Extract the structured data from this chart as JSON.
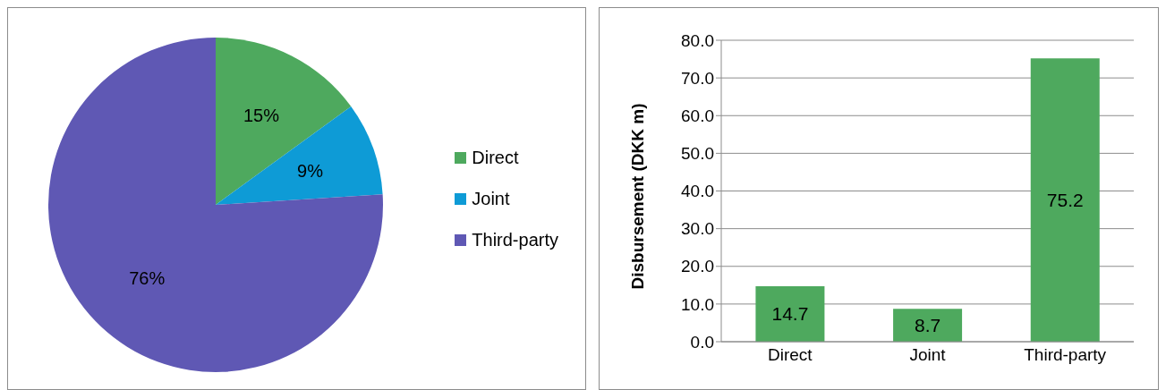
{
  "chart_data": [
    {
      "type": "pie",
      "categories": [
        "Direct",
        "Joint",
        "Third-party"
      ],
      "values": [
        15,
        9,
        76
      ],
      "colors": [
        "#4ea95e",
        "#0e9bd6",
        "#5f58b4"
      ],
      "value_labels": [
        "15%",
        "9%",
        "76%"
      ],
      "legend": "right"
    },
    {
      "type": "bar",
      "categories": [
        "Direct",
        "Joint",
        "Third-party"
      ],
      "values": [
        14.7,
        8.7,
        75.2
      ],
      "color": "#4ea95e",
      "ylabel": "Disbursement (DKK m)",
      "ylim": [
        0,
        80
      ],
      "yticks": [
        {
          "value": 0,
          "label": "0.0"
        },
        {
          "value": 10,
          "label": "10.0"
        },
        {
          "value": 20,
          "label": "20.0"
        },
        {
          "value": 30,
          "label": "30.0"
        },
        {
          "value": 40,
          "label": "40.0"
        },
        {
          "value": 50,
          "label": "50.0"
        },
        {
          "value": 60,
          "label": "60.0"
        },
        {
          "value": 70,
          "label": "70.0"
        },
        {
          "value": 80,
          "label": "80.0"
        }
      ],
      "grid": "y",
      "data_labels": true
    }
  ]
}
